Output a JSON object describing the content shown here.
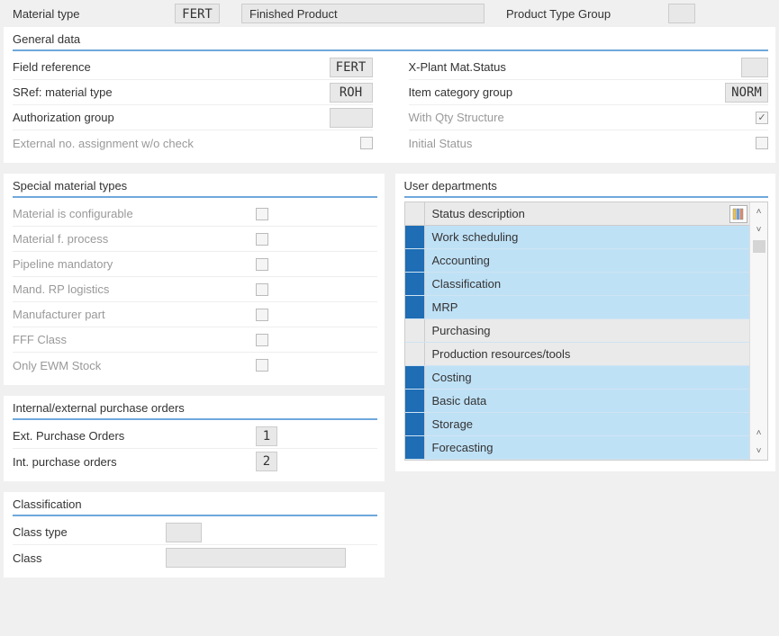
{
  "header": {
    "material_type_label": "Material type",
    "material_type_value": "FERT",
    "material_type_desc": "Finished Product",
    "product_type_group_label": "Product Type Group",
    "product_type_group_value": ""
  },
  "general": {
    "title": "General data",
    "left": {
      "field_reference_label": "Field reference",
      "field_reference_value": "FERT",
      "sref_label": "SRef: material type",
      "sref_value": "ROH",
      "auth_group_label": "Authorization group",
      "auth_group_value": "",
      "ext_no_label": "External no. assignment w/o check",
      "ext_no_checked": false
    },
    "right": {
      "xplant_label": "X-Plant Mat.Status",
      "xplant_value": "",
      "item_cat_label": "Item category group",
      "item_cat_value": "NORM",
      "qty_struct_label": "With Qty Structure",
      "qty_struct_checked": true,
      "initial_status_label": "Initial Status",
      "initial_status_checked": false
    }
  },
  "special": {
    "title": "Special material types",
    "rows": [
      {
        "label": "Material is configurable",
        "checked": false
      },
      {
        "label": "Material f. process",
        "checked": false
      },
      {
        "label": "Pipeline mandatory",
        "checked": false
      },
      {
        "label": "Mand. RP logistics",
        "checked": false
      },
      {
        "label": "Manufacturer part",
        "checked": false
      },
      {
        "label": "FFF Class",
        "checked": false
      },
      {
        "label": "Only EWM Stock",
        "checked": false
      }
    ]
  },
  "purchase": {
    "title": "Internal/external purchase orders",
    "ext_label": "Ext. Purchase Orders",
    "ext_value": "1",
    "int_label": "Int. purchase orders",
    "int_value": "2"
  },
  "classif": {
    "title": "Classification",
    "class_type_label": "Class type",
    "class_type_value": "",
    "class_label": "Class",
    "class_value": ""
  },
  "dept": {
    "title": "User departments",
    "header": "Status description",
    "rows": [
      {
        "label": "Work scheduling",
        "selected": true
      },
      {
        "label": "Accounting",
        "selected": true
      },
      {
        "label": "Classification",
        "selected": true
      },
      {
        "label": "MRP",
        "selected": true
      },
      {
        "label": "Purchasing",
        "selected": false
      },
      {
        "label": "Production resources/tools",
        "selected": false
      },
      {
        "label": "Costing",
        "selected": true
      },
      {
        "label": "Basic data",
        "selected": true
      },
      {
        "label": "Storage",
        "selected": true
      },
      {
        "label": "Forecasting",
        "selected": true
      }
    ]
  },
  "colors": {
    "accent": "#6fa8dc",
    "selected_bg": "#bfe1f6",
    "selected_marker": "#1e6db5"
  }
}
